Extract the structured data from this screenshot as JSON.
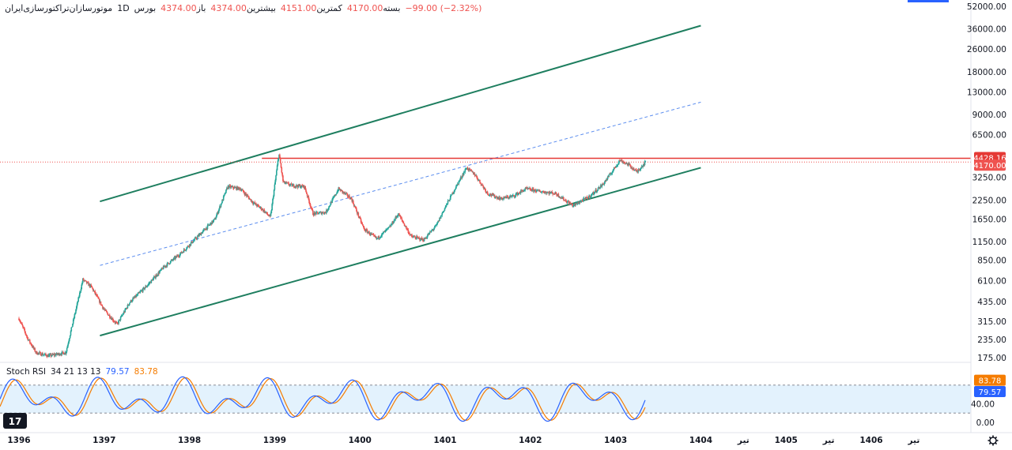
{
  "header": {
    "symbol": "موتورسازان‌تراکتورسازی‌ایران",
    "interval": "1D",
    "exchange": "بورس",
    "open_label": "باز",
    "open_value": "4374.00",
    "high_label": "بیشترین",
    "high_value": "4374.00",
    "low_label": "کمترین",
    "low_value": "4151.00",
    "close_label": "بسته",
    "close_value": "4170.00",
    "change": "−99.00 (−2.32%)"
  },
  "indicator": {
    "name": "Stoch RSI",
    "params": "34 21 13 13",
    "k_value": "79.57",
    "d_value": "83.78",
    "k_color": "#2962ff",
    "d_color": "#f57c00"
  },
  "colors": {
    "up": "#26a69a",
    "down": "#ef5350",
    "channel": "#1e7e5f",
    "midline": "#5b8def",
    "resistance": "#e53935",
    "band_fill": "#e3f2fd"
  },
  "settings_icon": "gear-icon",
  "chart_data": {
    "type": "candlestick",
    "price_scale": "log",
    "y_ticks": [
      "52000.00",
      "36000.00",
      "26000.00",
      "18000.00",
      "13000.00",
      "9000.00",
      "6500.00",
      "3250.00",
      "2250.00",
      "1650.00",
      "1150.00",
      "850.00",
      "610.00",
      "435.00",
      "315.00",
      "235.00",
      "175.00"
    ],
    "x_ticks": [
      "1396",
      "1397",
      "1398",
      "1399",
      "1400",
      "1401",
      "1402",
      "1403",
      "1404",
      "تیر",
      "1405",
      "تیر",
      "1406",
      "تیر"
    ],
    "price_labels": [
      {
        "value": "4428.16",
        "color": "#e53935"
      },
      {
        "value": "4170.00",
        "color": "#ef5350"
      }
    ],
    "resistance_level": 4428,
    "last_price": 4170,
    "series": [
      {
        "name": "price",
        "points": [
          {
            "x": 1396.0,
            "y": 330
          },
          {
            "x": 1396.1,
            "y": 240
          },
          {
            "x": 1396.2,
            "y": 190
          },
          {
            "x": 1396.35,
            "y": 180
          },
          {
            "x": 1396.55,
            "y": 190
          },
          {
            "x": 1396.75,
            "y": 620
          },
          {
            "x": 1396.85,
            "y": 550
          },
          {
            "x": 1397.0,
            "y": 380
          },
          {
            "x": 1397.15,
            "y": 300
          },
          {
            "x": 1397.3,
            "y": 430
          },
          {
            "x": 1397.5,
            "y": 560
          },
          {
            "x": 1397.7,
            "y": 760
          },
          {
            "x": 1397.9,
            "y": 950
          },
          {
            "x": 1398.1,
            "y": 1250
          },
          {
            "x": 1398.3,
            "y": 1650
          },
          {
            "x": 1398.45,
            "y": 2800
          },
          {
            "x": 1398.6,
            "y": 2700
          },
          {
            "x": 1398.75,
            "y": 2150
          },
          {
            "x": 1398.85,
            "y": 1950
          },
          {
            "x": 1398.95,
            "y": 1700
          },
          {
            "x": 1399.05,
            "y": 4800
          },
          {
            "x": 1399.1,
            "y": 3000
          },
          {
            "x": 1399.2,
            "y": 2850
          },
          {
            "x": 1399.35,
            "y": 2800
          },
          {
            "x": 1399.45,
            "y": 1800
          },
          {
            "x": 1399.6,
            "y": 1850
          },
          {
            "x": 1399.75,
            "y": 2700
          },
          {
            "x": 1399.9,
            "y": 2300
          },
          {
            "x": 1400.05,
            "y": 1400
          },
          {
            "x": 1400.2,
            "y": 1200
          },
          {
            "x": 1400.35,
            "y": 1450
          },
          {
            "x": 1400.45,
            "y": 1800
          },
          {
            "x": 1400.6,
            "y": 1250
          },
          {
            "x": 1400.75,
            "y": 1180
          },
          {
            "x": 1400.9,
            "y": 1500
          },
          {
            "x": 1401.0,
            "y": 2000
          },
          {
            "x": 1401.1,
            "y": 2600
          },
          {
            "x": 1401.25,
            "y": 3800
          },
          {
            "x": 1401.35,
            "y": 3400
          },
          {
            "x": 1401.5,
            "y": 2500
          },
          {
            "x": 1401.65,
            "y": 2300
          },
          {
            "x": 1401.8,
            "y": 2400
          },
          {
            "x": 1401.95,
            "y": 2700
          },
          {
            "x": 1402.1,
            "y": 2600
          },
          {
            "x": 1402.3,
            "y": 2500
          },
          {
            "x": 1402.5,
            "y": 2050
          },
          {
            "x": 1402.7,
            "y": 2400
          },
          {
            "x": 1402.85,
            "y": 2900
          },
          {
            "x": 1402.95,
            "y": 3500
          },
          {
            "x": 1403.05,
            "y": 4300
          },
          {
            "x": 1403.15,
            "y": 4000
          },
          {
            "x": 1403.25,
            "y": 3550
          },
          {
            "x": 1403.35,
            "y": 4170
          }
        ]
      }
    ],
    "trend_lines": [
      {
        "name": "channel-top",
        "from": {
          "x": 1396.95,
          "y": 2200
        },
        "to": {
          "x": 1404.0,
          "y": 38000
        }
      },
      {
        "name": "channel-bottom",
        "from": {
          "x": 1396.95,
          "y": 250
        },
        "to": {
          "x": 1404.0,
          "y": 3800
        }
      },
      {
        "name": "channel-mid",
        "from": {
          "x": 1396.95,
          "y": 780
        },
        "to": {
          "x": 1404.0,
          "y": 11000
        }
      }
    ],
    "stoch_rsi": {
      "y_ticks": [
        "40.00",
        "0.00"
      ],
      "upper_band": 80,
      "lower_band": 20,
      "k_last": 79.57,
      "d_last": 83.78
    }
  }
}
